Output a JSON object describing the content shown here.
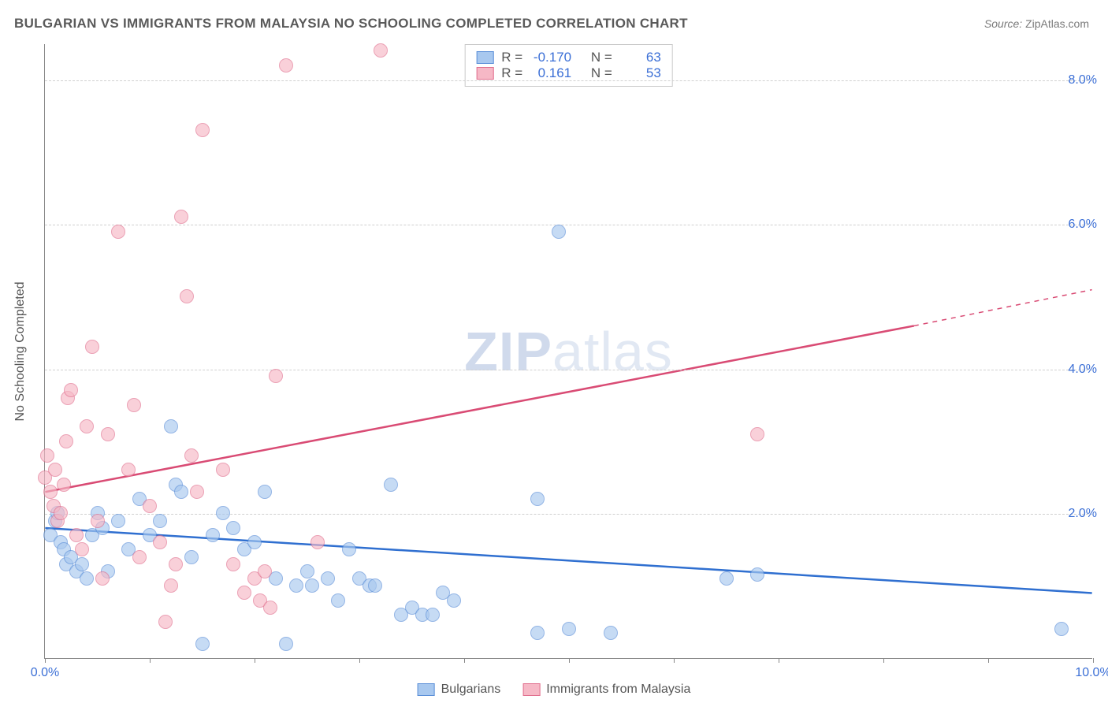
{
  "title": "BULGARIAN VS IMMIGRANTS FROM MALAYSIA NO SCHOOLING COMPLETED CORRELATION CHART",
  "source": {
    "label": "Source:",
    "name": "ZipAtlas.com"
  },
  "ylabel": "No Schooling Completed",
  "watermark": {
    "part1": "ZIP",
    "part2": "atlas"
  },
  "chart": {
    "type": "scatter",
    "background_color": "#ffffff",
    "grid_color": "#d0d0d0",
    "axis_color": "#888888",
    "tick_label_color": "#3b6fd6",
    "xlim": [
      0,
      10
    ],
    "ylim": [
      0,
      8.5
    ],
    "yticks": [
      2.0,
      4.0,
      6.0,
      8.0
    ],
    "ytick_labels": [
      "2.0%",
      "4.0%",
      "6.0%",
      "8.0%"
    ],
    "xtick_step": 1.0,
    "xtick_labels": {
      "0": "0.0%",
      "10": "10.0%"
    },
    "marker_radius": 9,
    "series": [
      {
        "name": "Bulgarians",
        "fill": "#a8c8ef",
        "stroke": "#5b8fd8",
        "line_color": "#2f6fd0",
        "line_width": 2.5,
        "R": "-0.170",
        "N": "63",
        "trend": {
          "x1": 0,
          "y1": 1.8,
          "x2": 10,
          "y2": 0.9
        },
        "points": [
          [
            0.05,
            1.7
          ],
          [
            0.1,
            1.9
          ],
          [
            0.12,
            2.0
          ],
          [
            0.15,
            1.6
          ],
          [
            0.18,
            1.5
          ],
          [
            0.2,
            1.3
          ],
          [
            0.25,
            1.4
          ],
          [
            0.3,
            1.2
          ],
          [
            0.35,
            1.3
          ],
          [
            0.4,
            1.1
          ],
          [
            0.45,
            1.7
          ],
          [
            0.5,
            2.0
          ],
          [
            0.55,
            1.8
          ],
          [
            0.6,
            1.2
          ],
          [
            0.7,
            1.9
          ],
          [
            0.8,
            1.5
          ],
          [
            0.9,
            2.2
          ],
          [
            1.0,
            1.7
          ],
          [
            1.1,
            1.9
          ],
          [
            1.2,
            3.2
          ],
          [
            1.25,
            2.4
          ],
          [
            1.3,
            2.3
          ],
          [
            1.4,
            1.4
          ],
          [
            1.5,
            0.2
          ],
          [
            1.6,
            1.7
          ],
          [
            1.7,
            2.0
          ],
          [
            1.8,
            1.8
          ],
          [
            1.9,
            1.5
          ],
          [
            2.0,
            1.6
          ],
          [
            2.1,
            2.3
          ],
          [
            2.2,
            1.1
          ],
          [
            2.3,
            0.2
          ],
          [
            2.4,
            1.0
          ],
          [
            2.5,
            1.2
          ],
          [
            2.55,
            1.0
          ],
          [
            2.7,
            1.1
          ],
          [
            2.8,
            0.8
          ],
          [
            2.9,
            1.5
          ],
          [
            3.0,
            1.1
          ],
          [
            3.1,
            1.0
          ],
          [
            3.15,
            1.0
          ],
          [
            3.3,
            2.4
          ],
          [
            3.4,
            0.6
          ],
          [
            3.5,
            0.7
          ],
          [
            3.6,
            0.6
          ],
          [
            3.7,
            0.6
          ],
          [
            3.8,
            0.9
          ],
          [
            3.9,
            0.8
          ],
          [
            4.7,
            2.2
          ],
          [
            4.7,
            0.35
          ],
          [
            4.9,
            5.9
          ],
          [
            5.0,
            0.4
          ],
          [
            5.4,
            0.35
          ],
          [
            6.5,
            1.1
          ],
          [
            6.8,
            1.15
          ],
          [
            9.7,
            0.4
          ]
        ]
      },
      {
        "name": "Immigrants from Malaysia",
        "fill": "#f6b8c6",
        "stroke": "#e16f8e",
        "line_color": "#d94b74",
        "line_width": 2.5,
        "R": "0.161",
        "N": "53",
        "trend": {
          "x1": 0,
          "y1": 2.3,
          "x2": 8.3,
          "y2": 4.6,
          "x3": 10,
          "y3": 5.1
        },
        "points": [
          [
            0.0,
            2.5
          ],
          [
            0.02,
            2.8
          ],
          [
            0.05,
            2.3
          ],
          [
            0.08,
            2.1
          ],
          [
            0.1,
            2.6
          ],
          [
            0.12,
            1.9
          ],
          [
            0.15,
            2.0
          ],
          [
            0.18,
            2.4
          ],
          [
            0.2,
            3.0
          ],
          [
            0.22,
            3.6
          ],
          [
            0.25,
            3.7
          ],
          [
            0.3,
            1.7
          ],
          [
            0.35,
            1.5
          ],
          [
            0.4,
            3.2
          ],
          [
            0.45,
            4.3
          ],
          [
            0.5,
            1.9
          ],
          [
            0.55,
            1.1
          ],
          [
            0.6,
            3.1
          ],
          [
            0.7,
            5.9
          ],
          [
            0.8,
            2.6
          ],
          [
            0.85,
            3.5
          ],
          [
            0.9,
            1.4
          ],
          [
            1.0,
            2.1
          ],
          [
            1.1,
            1.6
          ],
          [
            1.15,
            0.5
          ],
          [
            1.2,
            1.0
          ],
          [
            1.25,
            1.3
          ],
          [
            1.3,
            6.1
          ],
          [
            1.35,
            5.0
          ],
          [
            1.4,
            2.8
          ],
          [
            1.45,
            2.3
          ],
          [
            1.5,
            7.3
          ],
          [
            1.7,
            2.6
          ],
          [
            1.8,
            1.3
          ],
          [
            1.9,
            0.9
          ],
          [
            2.0,
            1.1
          ],
          [
            2.05,
            0.8
          ],
          [
            2.1,
            1.2
          ],
          [
            2.15,
            0.7
          ],
          [
            2.2,
            3.9
          ],
          [
            2.3,
            8.2
          ],
          [
            2.6,
            1.6
          ],
          [
            3.2,
            8.4
          ],
          [
            6.8,
            3.1
          ]
        ]
      }
    ]
  },
  "stats_legend": {
    "r_label": "R =",
    "n_label": "N ="
  },
  "bottom_legend": {
    "items": [
      "Bulgarians",
      "Immigrants from Malaysia"
    ]
  }
}
